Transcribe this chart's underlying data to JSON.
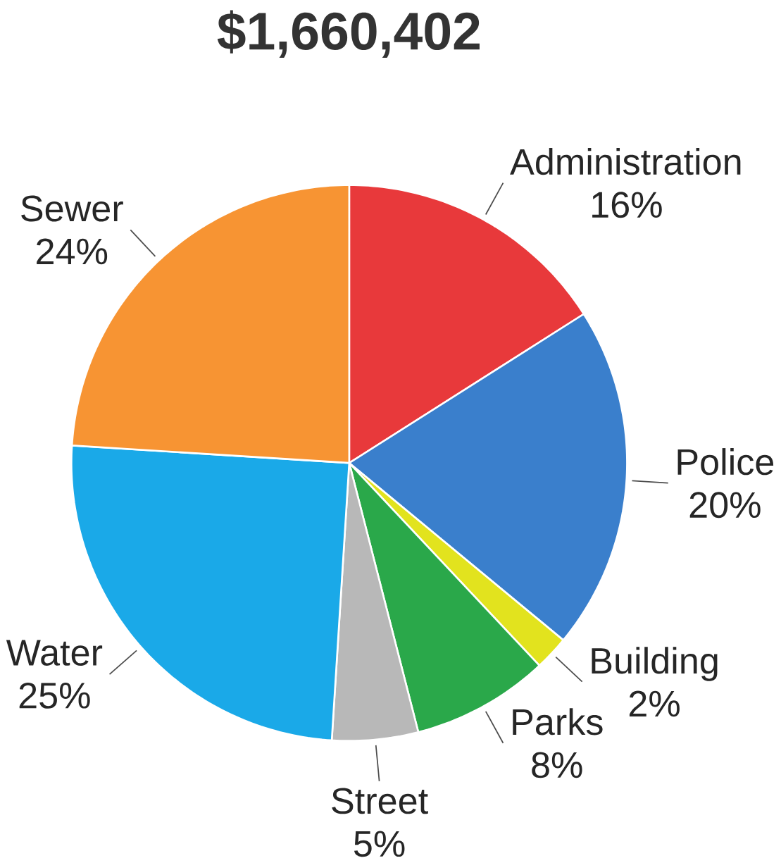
{
  "chart_data": {
    "type": "pie",
    "title": "$1,660,402",
    "categories": [
      "Administration",
      "Police",
      "Building",
      "Parks",
      "Street",
      "Water",
      "Sewer"
    ],
    "values": [
      16,
      20,
      2,
      8,
      5,
      25,
      24
    ],
    "value_labels": [
      "16%",
      "20%",
      "2%",
      "8%",
      "5%",
      "25%",
      "24%"
    ],
    "colors": [
      "#e8393b",
      "#3a7fcc",
      "#e2e31e",
      "#2aa84a",
      "#b8b8b8",
      "#1aa9e8",
      "#f79433"
    ]
  }
}
